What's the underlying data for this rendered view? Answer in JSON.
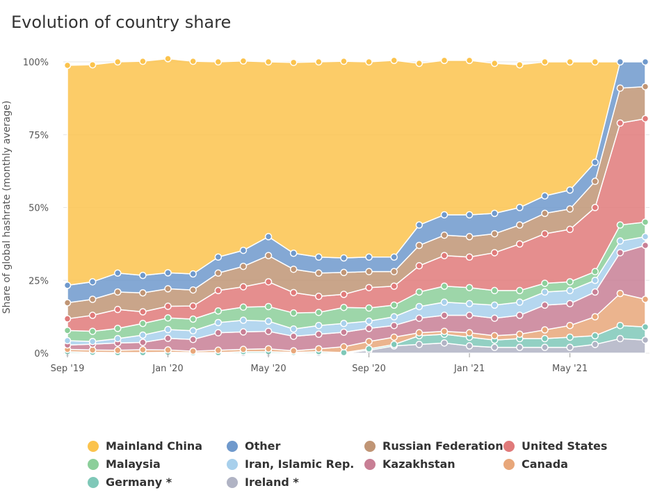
{
  "title": "Evolution of country share",
  "chart_data": {
    "type": "area",
    "stacked": true,
    "title": "Evolution of country share",
    "ylabel": "Share of global hashrate (monthly average)",
    "xlabel": "",
    "y_ticks": [
      "0%",
      "25%",
      "50%",
      "75%",
      "100%"
    ],
    "ylim": [
      0,
      100
    ],
    "x_ticks": [
      "Sep '19",
      "Jan '20",
      "May '20",
      "Sep '20",
      "Jan '21",
      "May '21"
    ],
    "x": [
      "2019-09",
      "2019-10",
      "2019-11",
      "2019-12",
      "2020-01",
      "2020-02",
      "2020-03",
      "2020-04",
      "2020-05",
      "2020-06",
      "2020-07",
      "2020-08",
      "2020-09",
      "2020-10",
      "2020-11",
      "2020-12",
      "2021-01",
      "2021-02",
      "2021-03",
      "2021-04",
      "2021-05",
      "2021-06",
      "2021-07",
      "2021-08"
    ],
    "legend_position": "bottom",
    "grid": true,
    "series": [
      {
        "name": "Ireland *",
        "color": "#b0b3c4",
        "values": [
          0.0,
          0.0,
          0.0,
          0.0,
          0.0,
          0.0,
          0.0,
          0.0,
          0.0,
          0.0,
          0.0,
          0.0,
          1.0,
          2.5,
          3.0,
          3.5,
          2.5,
          2.0,
          2.0,
          2.0,
          2.0,
          3.0,
          5.0,
          4.5
        ]
      },
      {
        "name": "Germany *",
        "color": "#7fc8b8",
        "values": [
          0.5,
          0.3,
          0.2,
          0.2,
          0.3,
          0.2,
          0.2,
          0.5,
          0.5,
          0.3,
          0.5,
          0.2,
          0.5,
          0.5,
          3.0,
          3.0,
          3.0,
          2.5,
          3.0,
          3.0,
          3.5,
          3.0,
          4.5,
          4.5
        ]
      },
      {
        "name": "Canada",
        "color": "#e8a77a",
        "values": [
          0.8,
          0.8,
          0.8,
          1.0,
          0.8,
          0.5,
          0.8,
          0.8,
          1.0,
          0.5,
          1.0,
          2.0,
          2.5,
          2.5,
          1.0,
          1.0,
          1.5,
          1.5,
          1.5,
          3.0,
          4.0,
          6.5,
          11.0,
          9.5
        ]
      },
      {
        "name": "Kazakhstan",
        "color": "#c87f95",
        "values": [
          1.5,
          2.0,
          2.5,
          2.5,
          4.0,
          4.0,
          6.0,
          6.0,
          6.0,
          5.0,
          5.0,
          5.0,
          4.5,
          4.0,
          5.0,
          5.5,
          6.0,
          6.0,
          6.5,
          8.5,
          7.5,
          8.5,
          14.0,
          18.5
        ]
      },
      {
        "name": "Iran, Islamic Rep.",
        "color": "#a8d0ec",
        "values": [
          1.5,
          0.9,
          1.5,
          2.5,
          3.0,
          3.0,
          3.5,
          4.0,
          3.5,
          2.5,
          3.0,
          3.0,
          2.5,
          3.0,
          4.0,
          4.5,
          4.0,
          4.5,
          4.5,
          4.5,
          4.5,
          4.0,
          4.0,
          3.0
        ]
      },
      {
        "name": "Malaysia",
        "color": "#8ccf9a",
        "values": [
          3.5,
          3.5,
          3.5,
          4.0,
          4.0,
          4.0,
          4.0,
          4.5,
          5.0,
          5.5,
          4.5,
          5.5,
          4.5,
          4.0,
          5.0,
          5.5,
          5.5,
          5.0,
          4.0,
          3.0,
          3.0,
          3.0,
          5.5,
          5.0
        ]
      },
      {
        "name": "United States",
        "color": "#e07a7a",
        "values": [
          4.0,
          5.5,
          6.5,
          4.0,
          4.0,
          4.5,
          7.0,
          7.0,
          8.5,
          7.0,
          5.5,
          4.5,
          7.0,
          6.5,
          9.0,
          10.5,
          10.5,
          13.0,
          16.0,
          17.0,
          18.0,
          22.0,
          35.0,
          35.5
        ]
      },
      {
        "name": "Russian Federation",
        "color": "#c09575",
        "values": [
          5.5,
          5.5,
          6.0,
          6.5,
          6.0,
          5.5,
          6.0,
          7.0,
          9.0,
          8.0,
          8.0,
          7.5,
          5.5,
          5.0,
          7.0,
          7.0,
          7.0,
          6.5,
          6.5,
          7.0,
          7.0,
          9.0,
          12.0,
          11.0
        ]
      },
      {
        "name": "Other",
        "color": "#6f99cc",
        "values": [
          6.0,
          6.0,
          6.5,
          6.0,
          5.5,
          5.5,
          5.5,
          5.5,
          6.5,
          5.5,
          5.5,
          5.0,
          5.0,
          5.0,
          7.0,
          7.0,
          7.5,
          7.0,
          6.0,
          6.0,
          6.5,
          6.5,
          9.0,
          8.5
        ]
      },
      {
        "name": "Mainland China",
        "color": "#fbc34d",
        "values": [
          75.5,
          74.5,
          72.5,
          73.5,
          73.5,
          73.0,
          67.0,
          65.0,
          60.0,
          65.5,
          67.0,
          67.5,
          67.0,
          67.5,
          55.5,
          53.0,
          53.0,
          51.5,
          49.0,
          46.0,
          44.0,
          34.5,
          0.0,
          0.0
        ]
      }
    ],
    "legend_order": [
      "Mainland China",
      "Other",
      "Russian Federation",
      "United States",
      "Malaysia",
      "Iran, Islamic Rep.",
      "Kazakhstan",
      "Canada",
      "Germany *",
      "Ireland *"
    ]
  }
}
